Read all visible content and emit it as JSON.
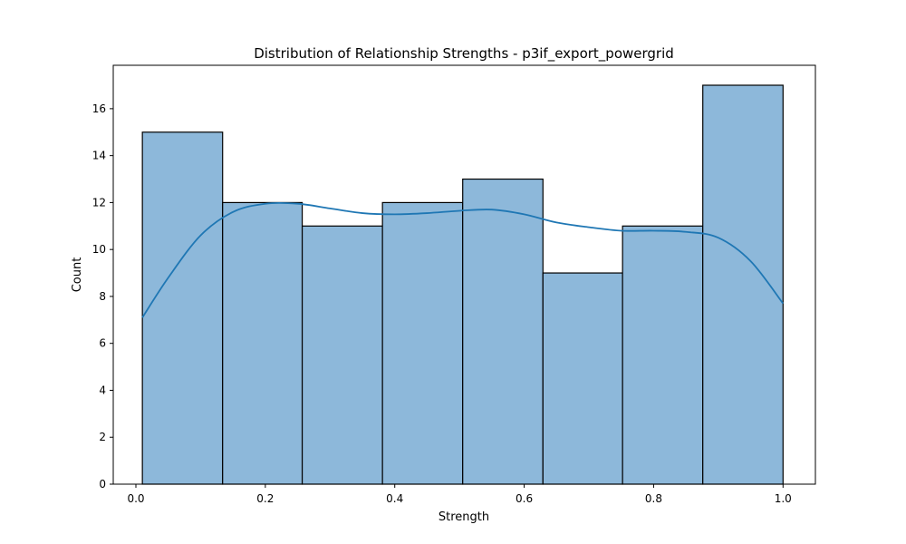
{
  "chart_data": {
    "type": "bar",
    "title": "Distribution of Relationship Strengths - p3if_export_powergrid",
    "xlabel": "Strength",
    "ylabel": "Count",
    "xlim": [
      -0.035,
      1.05
    ],
    "ylim": [
      0,
      17.85
    ],
    "x_ticks": [
      "0.0",
      "0.2",
      "0.4",
      "0.6",
      "0.8",
      "1.0"
    ],
    "y_ticks": [
      "0",
      "2",
      "4",
      "6",
      "8",
      "10",
      "12",
      "14",
      "16"
    ],
    "grid": false,
    "bins": [
      {
        "start": 0.01,
        "end": 0.134,
        "count": 15
      },
      {
        "start": 0.134,
        "end": 0.257,
        "count": 12
      },
      {
        "start": 0.257,
        "end": 0.381,
        "count": 11
      },
      {
        "start": 0.381,
        "end": 0.505,
        "count": 12
      },
      {
        "start": 0.505,
        "end": 0.629,
        "count": 13
      },
      {
        "start": 0.629,
        "end": 0.752,
        "count": 9
      },
      {
        "start": 0.752,
        "end": 0.876,
        "count": 11
      },
      {
        "start": 0.876,
        "end": 1.0,
        "count": 17
      }
    ],
    "kde": {
      "x": [
        0.01,
        0.05,
        0.1,
        0.15,
        0.2,
        0.25,
        0.3,
        0.35,
        0.4,
        0.45,
        0.5,
        0.55,
        0.6,
        0.65,
        0.7,
        0.75,
        0.8,
        0.85,
        0.9,
        0.95,
        1.0
      ],
      "y": [
        7.1,
        8.8,
        10.6,
        11.6,
        11.95,
        11.95,
        11.75,
        11.55,
        11.5,
        11.55,
        11.65,
        11.7,
        11.5,
        11.15,
        10.95,
        10.8,
        10.8,
        10.75,
        10.5,
        9.5,
        7.7
      ]
    },
    "colors": {
      "bar_fill": "#8db8da",
      "bar_edge": "#000000",
      "kde_line": "#1f77b4"
    }
  }
}
